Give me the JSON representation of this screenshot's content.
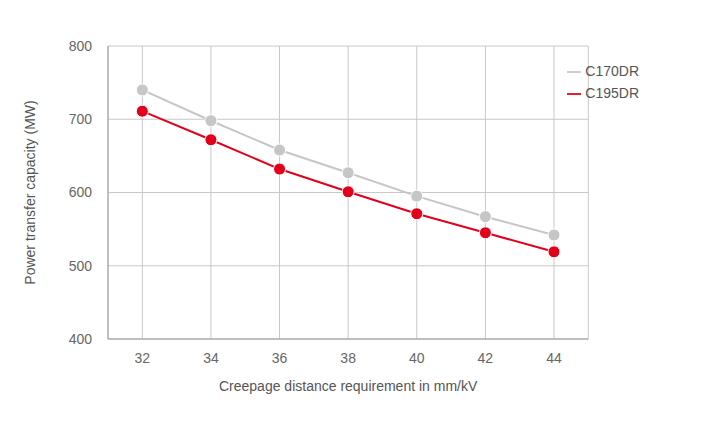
{
  "chart_data": {
    "type": "line",
    "x_label": "Creepage distance requirement in mm/kV",
    "y_label": "Power transfer capacity (MW)",
    "x": [
      32,
      34,
      36,
      38,
      40,
      42,
      44
    ],
    "series": [
      {
        "name": "C170DR",
        "color": "#c6c6c6",
        "marker": "circle",
        "values": [
          740,
          698,
          658,
          627,
          595,
          567,
          542
        ]
      },
      {
        "name": "C195DR",
        "color": "#e2001a",
        "marker": "circle",
        "values": [
          711,
          672,
          632,
          601,
          571,
          545,
          519
        ]
      }
    ],
    "xlim": [
      31,
      45
    ],
    "xticks": [
      32,
      34,
      36,
      38,
      40,
      42,
      44
    ],
    "ylim": [
      400,
      800
    ],
    "yticks": [
      400,
      500,
      600,
      700,
      800
    ],
    "grid": true,
    "legend": "top-right"
  }
}
